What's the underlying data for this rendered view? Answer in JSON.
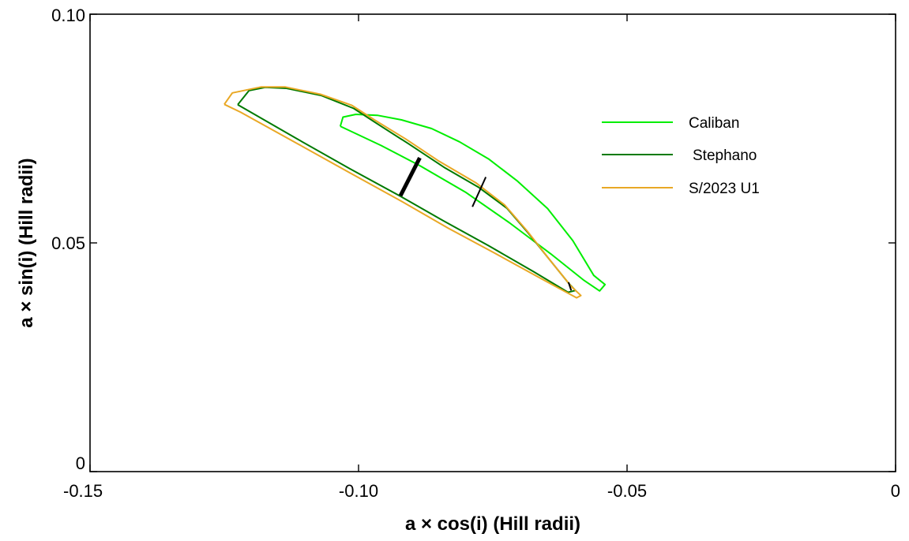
{
  "chart_data": {
    "type": "line",
    "xlabel": "a × cos(i) (Hill radii)",
    "ylabel": "a × sin(i) (Hill radii)",
    "xlim": [
      -0.15,
      0
    ],
    "ylim": [
      0,
      0.1
    ],
    "xticks": [
      -0.15,
      -0.1,
      -0.05,
      0
    ],
    "xtick_labels": [
      "-0.15",
      "-0.10",
      "-0.05",
      "0"
    ],
    "yticks": [
      0,
      0.05,
      0.1
    ],
    "ytick_labels": [
      "0",
      "0.05",
      "0.10"
    ],
    "grid": false,
    "legend_position": "top-right",
    "series": [
      {
        "name": "Caliban",
        "color": "#00ee00",
        "points": [
          [
            -0.1034,
            0.0755
          ],
          [
            -0.1029,
            0.0775
          ],
          [
            -0.1005,
            0.0781
          ],
          [
            -0.0965,
            0.0779
          ],
          [
            -0.092,
            0.0769
          ],
          [
            -0.0864,
            0.075
          ],
          [
            -0.0812,
            0.0721
          ],
          [
            -0.0757,
            0.0683
          ],
          [
            -0.0704,
            0.0635
          ],
          [
            -0.0648,
            0.0575
          ],
          [
            -0.0601,
            0.0505
          ],
          [
            -0.0562,
            0.0429
          ],
          [
            -0.0541,
            0.0409
          ],
          [
            -0.0551,
            0.0395
          ],
          [
            -0.058,
            0.0418
          ],
          [
            -0.0642,
            0.0476
          ],
          [
            -0.0719,
            0.0544
          ],
          [
            -0.0801,
            0.0611
          ],
          [
            -0.0886,
            0.0669
          ],
          [
            -0.0958,
            0.0713
          ],
          [
            -0.1034,
            0.0755
          ]
        ]
      },
      {
        "name": "Stephano",
        "color": "#007a00",
        "points": [
          [
            -0.1225,
            0.0802
          ],
          [
            -0.1204,
            0.0833
          ],
          [
            -0.1174,
            0.084
          ],
          [
            -0.1134,
            0.0838
          ],
          [
            -0.1069,
            0.0822
          ],
          [
            -0.1009,
            0.0794
          ],
          [
            -0.0966,
            0.0761
          ],
          [
            -0.0906,
            0.0716
          ],
          [
            -0.0839,
            0.0664
          ],
          [
            -0.0777,
            0.0622
          ],
          [
            -0.0724,
            0.0576
          ],
          [
            -0.0685,
            0.0523
          ],
          [
            -0.0646,
            0.0466
          ],
          [
            -0.0609,
            0.0412
          ],
          [
            -0.0596,
            0.0396
          ],
          [
            -0.061,
            0.0392
          ],
          [
            -0.0674,
            0.0437
          ],
          [
            -0.0758,
            0.0494
          ],
          [
            -0.0843,
            0.0549
          ],
          [
            -0.0925,
            0.0604
          ],
          [
            -0.1016,
            0.0662
          ],
          [
            -0.1114,
            0.0727
          ],
          [
            -0.1225,
            0.0802
          ]
        ]
      },
      {
        "name": "S/2023 U1",
        "color": "#e9a825",
        "points": [
          [
            -0.125,
            0.0803
          ],
          [
            -0.1235,
            0.0828
          ],
          [
            -0.1181,
            0.0841
          ],
          [
            -0.1137,
            0.0841
          ],
          [
            -0.1071,
            0.0825
          ],
          [
            -0.1013,
            0.0801
          ],
          [
            -0.0969,
            0.0768
          ],
          [
            -0.0912,
            0.0727
          ],
          [
            -0.0852,
            0.068
          ],
          [
            -0.0781,
            0.0631
          ],
          [
            -0.0728,
            0.0583
          ],
          [
            -0.0686,
            0.0526
          ],
          [
            -0.0644,
            0.0463
          ],
          [
            -0.0604,
            0.0405
          ],
          [
            -0.0586,
            0.0385
          ],
          [
            -0.0594,
            0.038
          ],
          [
            -0.0657,
            0.042
          ],
          [
            -0.0747,
            0.0478
          ],
          [
            -0.0833,
            0.0532
          ],
          [
            -0.092,
            0.0591
          ],
          [
            -0.1013,
            0.0651
          ],
          [
            -0.1114,
            0.0717
          ],
          [
            -0.122,
            0.0786
          ],
          [
            -0.125,
            0.0803
          ]
        ]
      }
    ],
    "markers": [
      {
        "color": "#000000",
        "weight": "thick",
        "points": [
          [
            -0.0922,
            0.0603
          ],
          [
            -0.0886,
            0.0686
          ]
        ]
      },
      {
        "color": "#000000",
        "weight": "thin",
        "points": [
          [
            -0.0788,
            0.0579
          ],
          [
            -0.0763,
            0.0644
          ]
        ]
      },
      {
        "color": "#000000",
        "weight": "thin",
        "points": [
          [
            -0.0609,
            0.0414
          ],
          [
            -0.0604,
            0.0396
          ]
        ]
      }
    ]
  }
}
